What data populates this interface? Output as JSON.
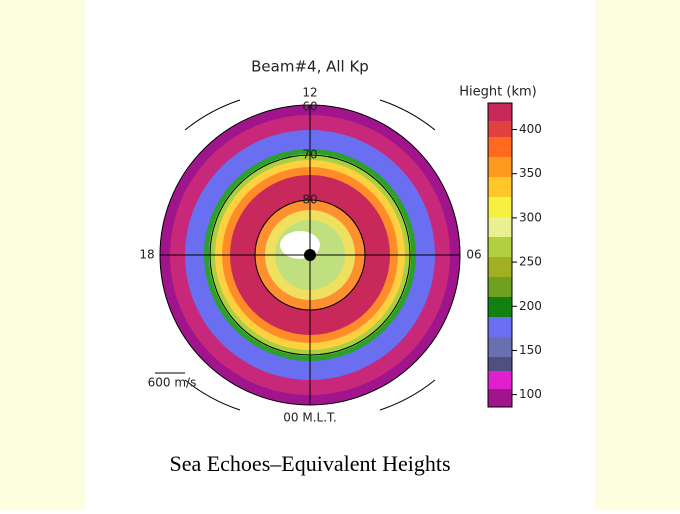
{
  "chart_data": {
    "type": "polar-map",
    "title": "Beam#4, All Kp",
    "directions": {
      "top": "12",
      "left": "18",
      "right": "06",
      "bottom": "00 M.L.T."
    },
    "latitude_labels": [
      "60",
      "70",
      "80"
    ],
    "vector_scale": "600 m/s",
    "colorbar": {
      "label": "Hieght (km)",
      "zlim": [
        86,
        430
      ],
      "ticks": [
        100,
        150,
        200,
        250,
        300,
        350,
        400
      ]
    },
    "caption": "Sea Echoes–Equivalent Heights"
  }
}
